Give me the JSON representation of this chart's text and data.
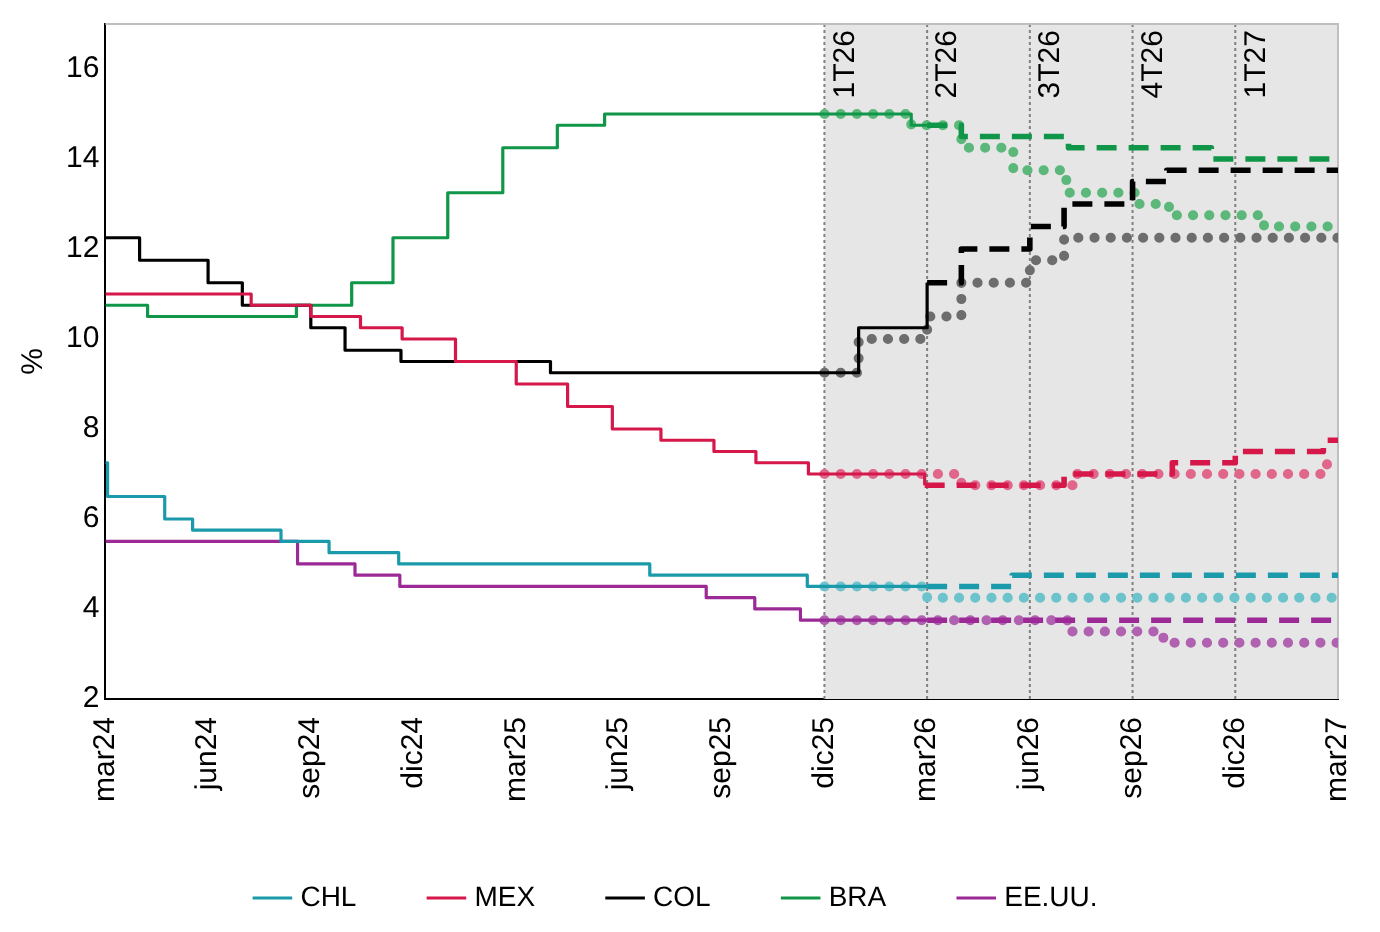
{
  "chart_data": {
    "type": "step",
    "ylabel": "%",
    "ylim": [
      2,
      17
    ],
    "yticks": [
      2,
      4,
      6,
      8,
      10,
      12,
      14,
      16
    ],
    "xlim": [
      "2024-03",
      "2027-03"
    ],
    "xticks": [
      {
        "value": "2024-03",
        "label": "mar24"
      },
      {
        "value": "2024-06",
        "label": "jun24"
      },
      {
        "value": "2024-09",
        "label": "sep24"
      },
      {
        "value": "2024-12",
        "label": "dic24"
      },
      {
        "value": "2025-03",
        "label": "mar25"
      },
      {
        "value": "2025-06",
        "label": "jun25"
      },
      {
        "value": "2025-09",
        "label": "sep25"
      },
      {
        "value": "2025-12",
        "label": "dic25"
      },
      {
        "value": "2026-03",
        "label": "mar26"
      },
      {
        "value": "2026-06",
        "label": "jun26"
      },
      {
        "value": "2026-09",
        "label": "sep26"
      },
      {
        "value": "2026-12",
        "label": "dic26"
      },
      {
        "value": "2027-03",
        "label": "mar27"
      }
    ],
    "legend": "bottom",
    "marker": "none",
    "bands": [
      {
        "axis": "x",
        "from": "2025-12",
        "to": "2027-03",
        "color": "#e6e6e6"
      }
    ],
    "ref_lines": [
      {
        "axis": "x",
        "value": "2025-12",
        "label": "1T26",
        "color": "#808080",
        "line_style": "dotted"
      },
      {
        "axis": "x",
        "value": "2026-03",
        "label": "2T26",
        "color": "#808080",
        "line_style": "dotted"
      },
      {
        "axis": "x",
        "value": "2026-06",
        "label": "3T26",
        "color": "#808080",
        "line_style": "dotted"
      },
      {
        "axis": "x",
        "value": "2026-09",
        "label": "4T26",
        "color": "#808080",
        "line_style": "dotted"
      },
      {
        "axis": "x",
        "value": "2026-12",
        "label": "1T27",
        "color": "#808080",
        "line_style": "dotted"
      }
    ],
    "series": [
      {
        "name": "CHL",
        "color": "#1a9aaa",
        "line_style": "solid",
        "x": [
          "2024-03-01",
          "2024-03-03",
          "2024-04-23",
          "2024-05-18",
          "2024-08-05",
          "2024-09-17",
          "2024-11-18",
          "2025-06-28",
          "2025-11-16",
          "2026-03-01"
        ],
        "values": [
          7.25,
          6.5,
          6.0,
          5.75,
          5.5,
          5.25,
          5.0,
          4.75,
          4.5,
          4.5
        ]
      },
      {
        "name": "MEX",
        "color": "#d5174a",
        "line_style": "solid",
        "x": [
          "2024-03-01",
          "2024-07-09",
          "2024-09-01",
          "2024-10-15",
          "2024-11-21",
          "2025-01-08",
          "2025-03-01",
          "2025-04-16",
          "2025-05-26",
          "2025-07-08",
          "2025-08-25",
          "2025-10-01",
          "2025-11-17",
          "2026-02-27"
        ],
        "values": [
          11.0,
          10.75,
          10.5,
          10.25,
          10.0,
          9.5,
          9.0,
          8.5,
          8.0,
          7.75,
          7.5,
          7.25,
          7.0,
          6.75
        ]
      },
      {
        "name": "COL",
        "color": "#000000",
        "line_style": "solid",
        "x": [
          "2024-03-01",
          "2024-04-01",
          "2024-06-01",
          "2024-07-01",
          "2024-09-01",
          "2024-10-01",
          "2024-11-20",
          "2025-04-01",
          "2026-01-01",
          "2026-03-01"
        ],
        "values": [
          12.25,
          11.75,
          11.25,
          10.75,
          10.25,
          9.75,
          9.5,
          9.25,
          10.25,
          11.25
        ]
      },
      {
        "name": "BRA",
        "color": "#109648",
        "line_style": "solid",
        "x": [
          "2024-03-01",
          "2024-04-08",
          "2024-08-19",
          "2024-10-07",
          "2024-11-13",
          "2025-01-01",
          "2025-02-18",
          "2025-04-07",
          "2025-05-19",
          "2026-02-16",
          "2026-03-01"
        ],
        "values": [
          10.75,
          10.5,
          10.75,
          11.25,
          12.25,
          13.25,
          14.25,
          14.75,
          15.0,
          14.75,
          14.75
        ]
      },
      {
        "name": "EE.UU.",
        "color": "#9b2a97",
        "line_style": "solid",
        "x": [
          "2024-03-01",
          "2024-08-20",
          "2024-10-10",
          "2024-11-19",
          "2025-08-18",
          "2025-09-30",
          "2025-11-10",
          "2026-03-01"
        ],
        "values": [
          5.5,
          5.0,
          4.75,
          4.5,
          4.25,
          4.0,
          3.75,
          3.75
        ]
      },
      {
        "color": "#1a9aaa",
        "line_style": "dashed",
        "x": [
          "2026-03-01",
          "2026-05-16",
          "2027-03-01"
        ],
        "values": [
          4.5,
          4.75,
          4.75
        ]
      },
      {
        "color": "#d5174a",
        "line_style": "dashed",
        "x": [
          "2026-02-27",
          "2026-07-01",
          "2026-10-06",
          "2026-12-01",
          "2027-02-17",
          "2027-03-01"
        ],
        "values": [
          6.75,
          7.0,
          7.25,
          7.5,
          7.75,
          7.75
        ]
      },
      {
        "color": "#000000",
        "line_style": "dashed",
        "x": [
          "2026-03-01",
          "2026-04-01",
          "2026-06-01",
          "2026-07-01",
          "2026-09-01",
          "2026-10-01",
          "2027-03-01"
        ],
        "values": [
          11.25,
          12.0,
          12.5,
          13.0,
          13.5,
          13.75,
          13.75
        ]
      },
      {
        "color": "#109648",
        "line_style": "dashed",
        "x": [
          "2026-03-01",
          "2026-04-01",
          "2026-07-05",
          "2026-11-10",
          "2027-03-01"
        ],
        "values": [
          14.75,
          14.5,
          14.25,
          14.0,
          14.0
        ]
      },
      {
        "color": "#9b2a97",
        "line_style": "dashed",
        "x": [
          "2026-03-01",
          "2027-03-01"
        ],
        "values": [
          3.75,
          3.75
        ]
      },
      {
        "color": "#6cc3cc",
        "line_style": "dotted",
        "x": [
          "2025-12-01",
          "2026-03-01",
          "2027-03-01"
        ],
        "values": [
          4.5,
          4.25,
          4.25
        ]
      },
      {
        "color": "#e0668a",
        "line_style": "dotted",
        "x": [
          "2025-12-01",
          "2026-04-01",
          "2026-07-10",
          "2027-02-20",
          "2027-03-01"
        ],
        "values": [
          7.0,
          6.75,
          7.0,
          7.25,
          7.25
        ]
      },
      {
        "color": "#6d6d6d",
        "line_style": "dotted",
        "x": [
          "2025-12-01",
          "2026-01-01",
          "2026-03-01",
          "2026-04-01",
          "2026-06-01",
          "2026-07-01",
          "2027-03-01"
        ],
        "values": [
          9.25,
          10.0,
          10.5,
          11.25,
          11.75,
          12.25,
          12.25
        ]
      },
      {
        "color": "#5cb87a",
        "line_style": "dotted",
        "x": [
          "2025-12-01",
          "2026-02-16",
          "2026-04-01",
          "2026-05-17",
          "2026-07-03",
          "2026-09-05",
          "2026-10-03",
          "2026-12-27",
          "2027-03-01"
        ],
        "values": [
          15.0,
          14.75,
          14.25,
          13.75,
          13.25,
          13.0,
          12.75,
          12.5,
          12.5
        ]
      },
      {
        "color": "#b062b0",
        "line_style": "dotted",
        "x": [
          "2025-12-01",
          "2026-07-04",
          "2026-09-28",
          "2027-03-01"
        ],
        "values": [
          3.75,
          3.5,
          3.25,
          3.25
        ]
      }
    ]
  }
}
